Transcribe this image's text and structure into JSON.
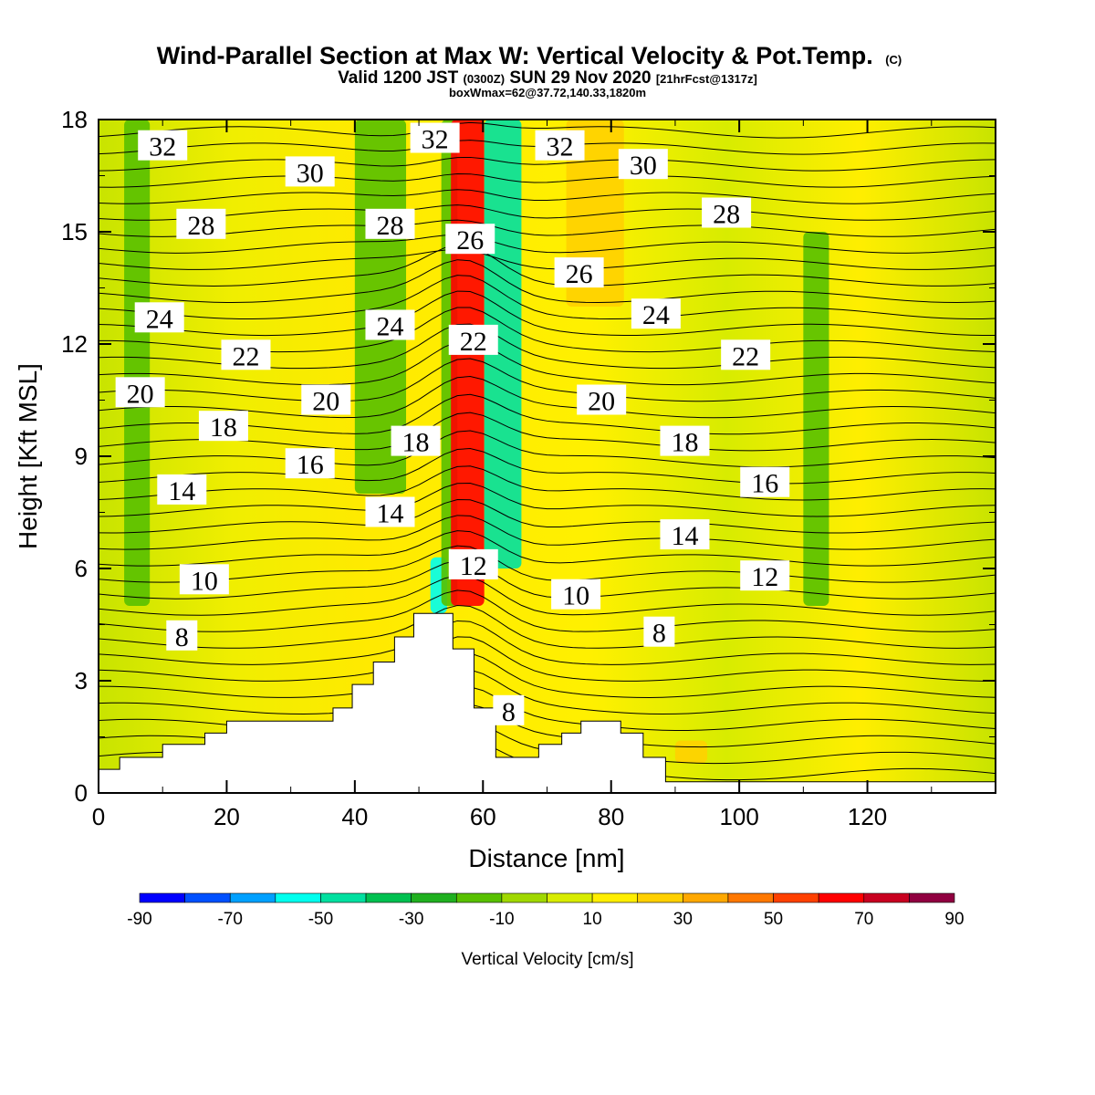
{
  "header": {
    "title_main": "Wind-Parallel Section at Max W: Vertical Velocity & Pot.Temp.",
    "title_mark": "(C)",
    "valid_a": "Valid 1200 JST",
    "valid_b": "(0300Z)",
    "valid_c": "SUN 29 Nov 2020",
    "valid_d": "[21hrFcst@1317z]",
    "box_info": "boxWmax=62@37.72,140.33,1820m"
  },
  "chart_data": {
    "type": "heatmap",
    "title": "Wind-Parallel Section at Max W: Vertical Velocity & Pot.Temp.",
    "xlabel": "Distance [nm]",
    "ylabel": "Height [Kft MSL]",
    "xlim": [
      0,
      140
    ],
    "ylim": [
      0,
      18
    ],
    "xticks": [
      0,
      20,
      40,
      60,
      80,
      100,
      120
    ],
    "yticks": [
      0,
      3,
      6,
      9,
      12,
      15,
      18
    ],
    "grid": false,
    "colorbar": {
      "label": "Vertical Velocity [cm/s]",
      "placement": "bottom",
      "levels": [
        -90,
        -80,
        -70,
        -60,
        -50,
        -40,
        -30,
        -20,
        -10,
        0,
        10,
        20,
        30,
        40,
        50,
        60,
        70,
        80,
        90
      ],
      "tick_labels": [
        -90,
        -70,
        -50,
        -30,
        -10,
        10,
        30,
        50,
        70,
        90
      ],
      "colors": [
        "#0000ff",
        "#0050ff",
        "#00a0ff",
        "#00ffee",
        "#00e0a0",
        "#00c050",
        "#20b020",
        "#58c000",
        "#a0d800",
        "#d8ec00",
        "#ffee00",
        "#ffd000",
        "#ffa800",
        "#ff7800",
        "#ff4000",
        "#ff0000",
        "#c80020",
        "#900040",
        "#500080"
      ]
    },
    "terrain": [
      [
        0,
        0.63
      ],
      [
        3.3,
        0.63
      ],
      [
        3.3,
        0.95
      ],
      [
        10,
        0.95
      ],
      [
        10,
        1.3
      ],
      [
        16.6,
        1.3
      ],
      [
        16.6,
        1.6
      ],
      [
        20,
        1.6
      ],
      [
        20,
        1.92
      ],
      [
        36.6,
        1.92
      ],
      [
        36.6,
        2.27
      ],
      [
        39.6,
        2.27
      ],
      [
        39.6,
        2.9
      ],
      [
        42.9,
        2.9
      ],
      [
        42.9,
        3.5
      ],
      [
        46.2,
        3.5
      ],
      [
        46.2,
        4.17
      ],
      [
        49.2,
        4.17
      ],
      [
        49.2,
        4.8
      ],
      [
        55.3,
        4.8
      ],
      [
        55.3,
        3.85
      ],
      [
        58.6,
        3.85
      ],
      [
        58.6,
        2.27
      ],
      [
        62,
        2.27
      ],
      [
        62,
        0.95
      ],
      [
        68.7,
        0.95
      ],
      [
        68.7,
        1.3
      ],
      [
        72.3,
        1.3
      ],
      [
        72.3,
        1.6
      ],
      [
        75.3,
        1.6
      ],
      [
        75.3,
        1.92
      ],
      [
        81.5,
        1.92
      ],
      [
        81.5,
        1.6
      ],
      [
        85,
        1.6
      ],
      [
        85,
        0.95
      ],
      [
        88.5,
        0.95
      ],
      [
        88.5,
        0.3
      ],
      [
        140,
        0.3
      ]
    ],
    "vertical_velocity": [
      {
        "x": [
          51.8,
          54.4
        ],
        "y": [
          4.8,
          6.3
        ],
        "w": -55
      },
      {
        "x": [
          53.5,
          56.0
        ],
        "y": [
          5.0,
          18.0
        ],
        "w": -20
      },
      {
        "x": [
          55.0,
          60.2
        ],
        "y": [
          5.0,
          18.0
        ],
        "w": 62
      },
      {
        "x": [
          60.2,
          66.0
        ],
        "y": [
          6.0,
          18.0
        ],
        "w": -45
      },
      {
        "x": [
          4.0,
          8.0
        ],
        "y": [
          5.0,
          18.0
        ],
        "w": -15
      },
      {
        "x": [
          40.0,
          48.0
        ],
        "y": [
          8.0,
          18.0
        ],
        "w": -20
      },
      {
        "x": [
          73.0,
          82.0
        ],
        "y": [
          13.0,
          18.0
        ],
        "w": 22
      },
      {
        "x": [
          90.0,
          95.0
        ],
        "y": [
          0.8,
          1.4
        ],
        "w": 22
      },
      {
        "x": [
          110.0,
          114.0
        ],
        "y": [
          5.0,
          15.0
        ],
        "w": -15
      }
    ],
    "theta_contours": {
      "interval": 1,
      "labels": [
        {
          "text": "32",
          "x": 10,
          "y": 17.3
        },
        {
          "text": "30",
          "x": 33,
          "y": 16.6
        },
        {
          "text": "28",
          "x": 16,
          "y": 15.2
        },
        {
          "text": "24",
          "x": 9.5,
          "y": 12.7
        },
        {
          "text": "22",
          "x": 23,
          "y": 11.7
        },
        {
          "text": "20",
          "x": 6.5,
          "y": 10.7
        },
        {
          "text": "18",
          "x": 19.5,
          "y": 9.8
        },
        {
          "text": "16",
          "x": 33,
          "y": 8.8
        },
        {
          "text": "14",
          "x": 13,
          "y": 8.1
        },
        {
          "text": "10",
          "x": 16.5,
          "y": 5.7
        },
        {
          "text": "8",
          "x": 13,
          "y": 4.2
        },
        {
          "text": "20",
          "x": 35.5,
          "y": 10.5
        },
        {
          "text": "28",
          "x": 45.5,
          "y": 15.2
        },
        {
          "text": "24",
          "x": 45.5,
          "y": 12.5
        },
        {
          "text": "18",
          "x": 49.5,
          "y": 9.4
        },
        {
          "text": "14",
          "x": 45.5,
          "y": 7.5
        },
        {
          "text": "32",
          "x": 52.5,
          "y": 17.5
        },
        {
          "text": "26",
          "x": 58,
          "y": 14.8
        },
        {
          "text": "22",
          "x": 58.5,
          "y": 12.1
        },
        {
          "text": "12",
          "x": 58.5,
          "y": 6.1
        },
        {
          "text": "32",
          "x": 72,
          "y": 17.3
        },
        {
          "text": "30",
          "x": 85,
          "y": 16.8
        },
        {
          "text": "26",
          "x": 75,
          "y": 13.9
        },
        {
          "text": "24",
          "x": 87,
          "y": 12.8
        },
        {
          "text": "20",
          "x": 78.5,
          "y": 10.5
        },
        {
          "text": "18",
          "x": 91.5,
          "y": 9.4
        },
        {
          "text": "14",
          "x": 91.5,
          "y": 6.9
        },
        {
          "text": "10",
          "x": 74.5,
          "y": 5.3
        },
        {
          "text": "8",
          "x": 87.5,
          "y": 4.3
        },
        {
          "text": "8",
          "x": 64,
          "y": 2.2
        },
        {
          "text": "28",
          "x": 98,
          "y": 15.5
        },
        {
          "text": "22",
          "x": 101,
          "y": 11.7
        },
        {
          "text": "16",
          "x": 104,
          "y": 8.3
        },
        {
          "text": "12",
          "x": 104,
          "y": 5.8
        }
      ]
    }
  }
}
